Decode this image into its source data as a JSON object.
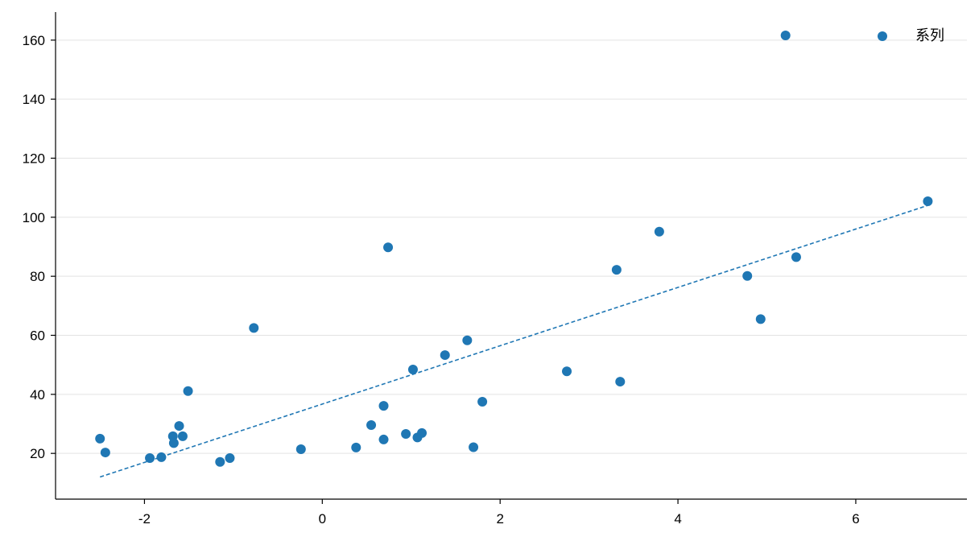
{
  "chart_data": {
    "type": "scatter",
    "grid": {
      "horizontal": true,
      "vertical": false
    },
    "legend": {
      "position": "top-right",
      "entries": [
        "系列"
      ]
    },
    "xlim": [
      -3.0,
      7.25
    ],
    "ylim": [
      4.5,
      169.5
    ],
    "x_ticks": [
      -2,
      0,
      2,
      4,
      6
    ],
    "y_ticks": [
      20,
      40,
      60,
      80,
      100,
      120,
      140,
      160
    ],
    "colors": {
      "series": "#1f77b4",
      "grid": "#e3e3e3",
      "axis": "#000000"
    },
    "series": [
      {
        "name": "系列",
        "points": [
          {
            "x": -2.5,
            "y": 25.0
          },
          {
            "x": -2.44,
            "y": 20.3
          },
          {
            "x": -1.94,
            "y": 18.4
          },
          {
            "x": -1.81,
            "y": 18.7
          },
          {
            "x": -1.68,
            "y": 25.8
          },
          {
            "x": -1.67,
            "y": 23.5
          },
          {
            "x": -1.61,
            "y": 29.3
          },
          {
            "x": -1.57,
            "y": 25.8
          },
          {
            "x": -1.51,
            "y": 41.1
          },
          {
            "x": -1.15,
            "y": 17.1
          },
          {
            "x": -1.04,
            "y": 18.4
          },
          {
            "x": -0.77,
            "y": 62.5
          },
          {
            "x": -0.24,
            "y": 21.4
          },
          {
            "x": 0.38,
            "y": 22.0
          },
          {
            "x": 0.55,
            "y": 29.6
          },
          {
            "x": 0.69,
            "y": 36.1
          },
          {
            "x": 0.69,
            "y": 24.7
          },
          {
            "x": 0.74,
            "y": 89.8
          },
          {
            "x": 0.94,
            "y": 26.6
          },
          {
            "x": 1.02,
            "y": 48.4
          },
          {
            "x": 1.07,
            "y": 25.4
          },
          {
            "x": 1.12,
            "y": 26.9
          },
          {
            "x": 1.38,
            "y": 53.3
          },
          {
            "x": 1.63,
            "y": 58.3
          },
          {
            "x": 1.7,
            "y": 22.1
          },
          {
            "x": 1.8,
            "y": 37.5
          },
          {
            "x": 2.75,
            "y": 47.8
          },
          {
            "x": 3.31,
            "y": 82.2
          },
          {
            "x": 3.35,
            "y": 44.3
          },
          {
            "x": 3.79,
            "y": 95.1
          },
          {
            "x": 4.78,
            "y": 80.1
          },
          {
            "x": 4.93,
            "y": 65.5
          },
          {
            "x": 5.21,
            "y": 161.6
          },
          {
            "x": 5.33,
            "y": 86.5
          },
          {
            "x": 6.81,
            "y": 105.4
          }
        ]
      }
    ],
    "trendline": {
      "style": "dashed",
      "x": [
        -2.5,
        6.81
      ],
      "y": [
        12.0,
        104.0
      ]
    }
  }
}
